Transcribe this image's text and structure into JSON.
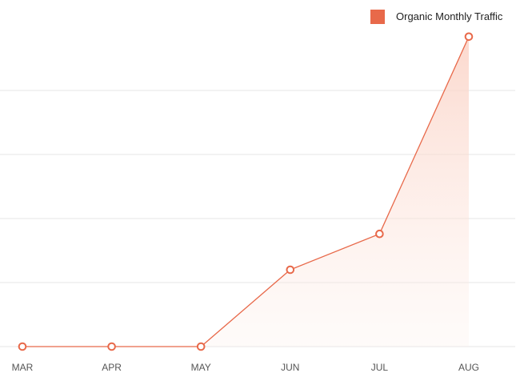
{
  "chart_data": {
    "type": "area",
    "categories": [
      "MAR",
      "APR",
      "MAY",
      "JUN",
      "JUL",
      "AUG"
    ],
    "series": [
      {
        "name": "Organic Monthly Traffic",
        "values": [
          0,
          0,
          0,
          1200,
          1760,
          4840
        ]
      }
    ],
    "ylim": [
      0,
      5000
    ],
    "grid": true,
    "legend_position": "top-right",
    "line_color": "#e8694a",
    "fill_color": "#fbd7cc",
    "grid_color": "#e6e6e6"
  }
}
